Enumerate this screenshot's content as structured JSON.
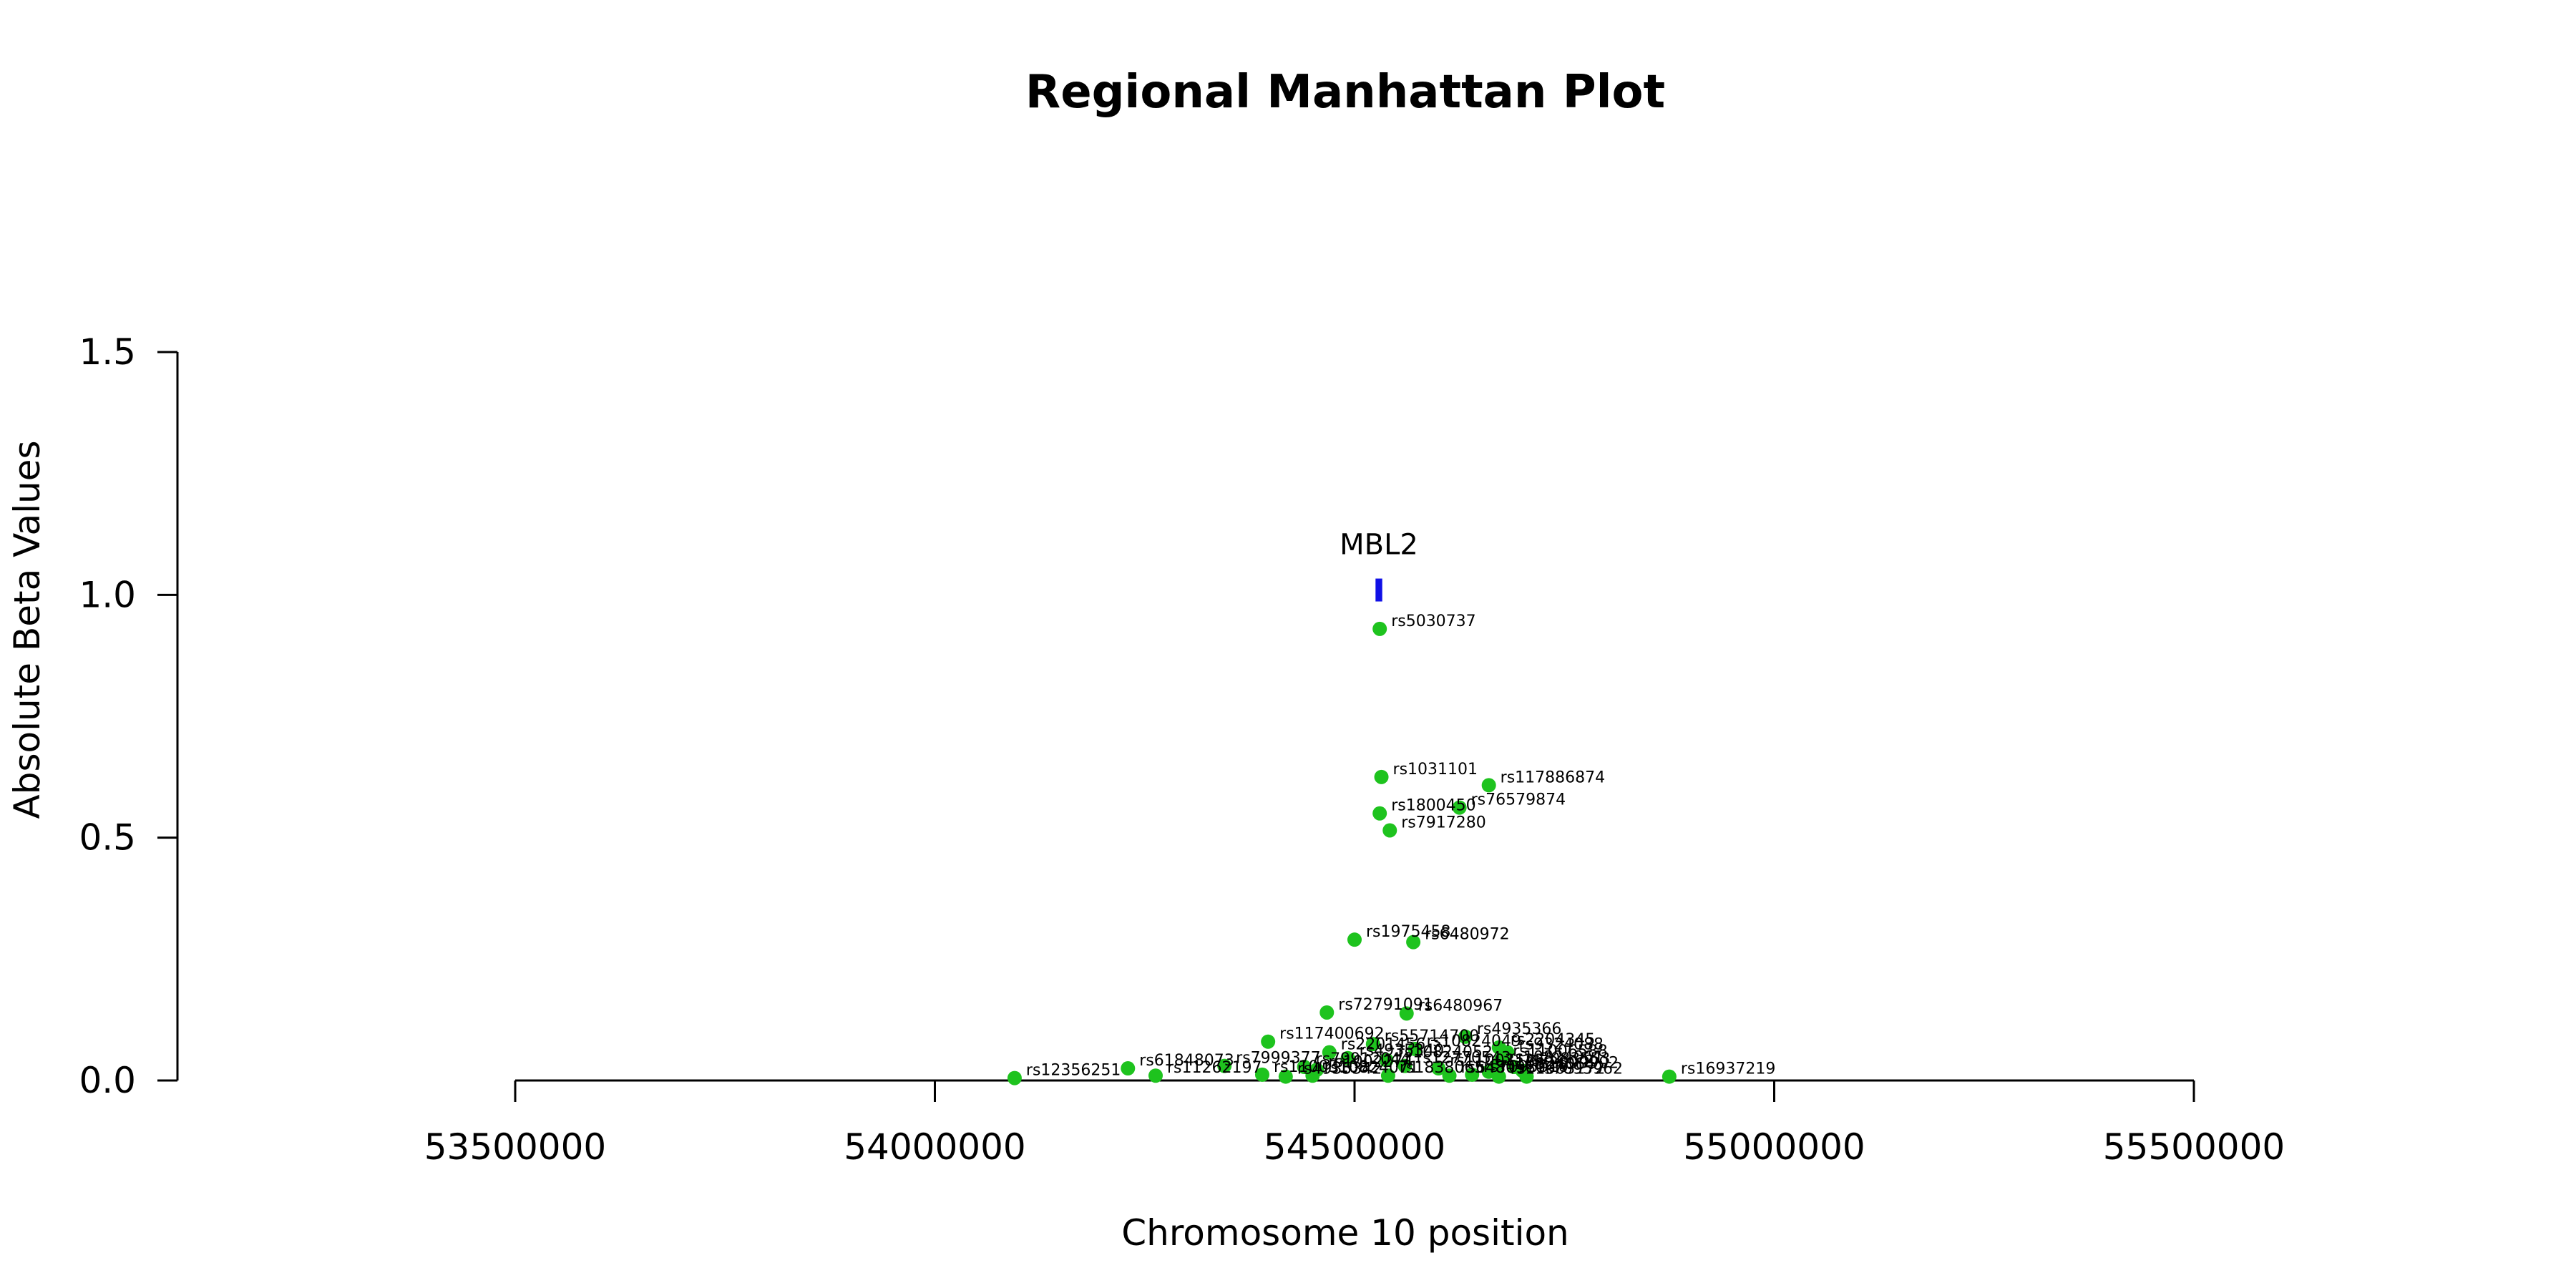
{
  "chart_data": {
    "type": "scatter",
    "title": "Regional Manhattan Plot",
    "xlabel": "Chromosome 10 position",
    "ylabel": "Absolute Beta Values",
    "xlim": [
      53500000,
      55500000
    ],
    "ylim": [
      0,
      1.5
    ],
    "x_ticks": [
      "53500000",
      "54000000",
      "54500000",
      "55000000",
      "55500000"
    ],
    "y_ticks": [
      "0.0",
      "0.5",
      "1.0",
      "1.5"
    ],
    "grid": false,
    "point_color": "#1ec31e",
    "gene": {
      "name": "MBL2",
      "start": 54525000,
      "end": 54533000,
      "y": 1.01,
      "color": "#1010e6"
    },
    "points": [
      {
        "label": "rs5030737",
        "x": 54530000,
        "y": 0.93
      },
      {
        "label": "rs1031101",
        "x": 54532000,
        "y": 0.625
      },
      {
        "label": "rs117886874",
        "x": 54660000,
        "y": 0.608
      },
      {
        "label": "rs76579874",
        "x": 54625000,
        "y": 0.562
      },
      {
        "label": "rs1800450",
        "x": 54530000,
        "y": 0.55
      },
      {
        "label": "rs7917280",
        "x": 54542000,
        "y": 0.515
      },
      {
        "label": "rs1975458",
        "x": 54500000,
        "y": 0.29
      },
      {
        "label": "rs6480972",
        "x": 54570000,
        "y": 0.285
      },
      {
        "label": "rs72791091",
        "x": 54467000,
        "y": 0.14
      },
      {
        "label": "rs6480967",
        "x": 54562000,
        "y": 0.138
      },
      {
        "label": "rs117400692",
        "x": 54397000,
        "y": 0.08
      },
      {
        "label": "rs4935366",
        "x": 54632000,
        "y": 0.09
      },
      {
        "label": "rs55714700",
        "x": 54522000,
        "y": 0.075
      },
      {
        "label": "rs2204345",
        "x": 54672000,
        "y": 0.068
      },
      {
        "label": "rs10824049",
        "x": 54572000,
        "y": 0.065
      },
      {
        "label": "rs9324088",
        "x": 54682000,
        "y": 0.058
      },
      {
        "label": "rs2201456",
        "x": 54470000,
        "y": 0.058
      },
      {
        "label": "rs4935340",
        "x": 54492000,
        "y": 0.046
      },
      {
        "label": "rs10824052",
        "x": 54538000,
        "y": 0.042
      },
      {
        "label": "rs11006588",
        "x": 54675000,
        "y": 0.044
      },
      {
        "label": "rs61848073",
        "x": 54230000,
        "y": 0.025
      },
      {
        "label": "rs7999377",
        "x": 54345000,
        "y": 0.03
      },
      {
        "label": "rs79912044",
        "x": 54440000,
        "y": 0.028
      },
      {
        "label": "rs1002274",
        "x": 54455000,
        "y": 0.022
      },
      {
        "label": "rs12770543",
        "x": 54560000,
        "y": 0.03
      },
      {
        "label": "rs11003125",
        "x": 54600000,
        "y": 0.025
      },
      {
        "label": "rs10824061",
        "x": 54670000,
        "y": 0.032
      },
      {
        "label": "rs7083553",
        "x": 54690000,
        "y": 0.028
      },
      {
        "label": "rs10824064",
        "x": 54660000,
        "y": 0.018
      },
      {
        "label": "rs2099902",
        "x": 54700000,
        "y": 0.02
      },
      {
        "label": "rs12356251",
        "x": 54095000,
        "y": 0.005
      },
      {
        "label": "rs11262197",
        "x": 54263000,
        "y": 0.01
      },
      {
        "label": "rs11003108",
        "x": 54390000,
        "y": 0.012
      },
      {
        "label": "rs4935342",
        "x": 54418000,
        "y": 0.008
      },
      {
        "label": "rs10824071",
        "x": 54450000,
        "y": 0.01
      },
      {
        "label": "rs1838065",
        "x": 54540000,
        "y": 0.01
      },
      {
        "label": "rs6480980",
        "x": 54613000,
        "y": 0.01
      },
      {
        "label": "rs7095010",
        "x": 54640000,
        "y": 0.012
      },
      {
        "label": "rs11003172",
        "x": 54672000,
        "y": 0.008
      },
      {
        "label": "rs7095962",
        "x": 54705000,
        "y": 0.008
      },
      {
        "label": "rs16937219",
        "x": 54875000,
        "y": 0.008
      }
    ]
  }
}
